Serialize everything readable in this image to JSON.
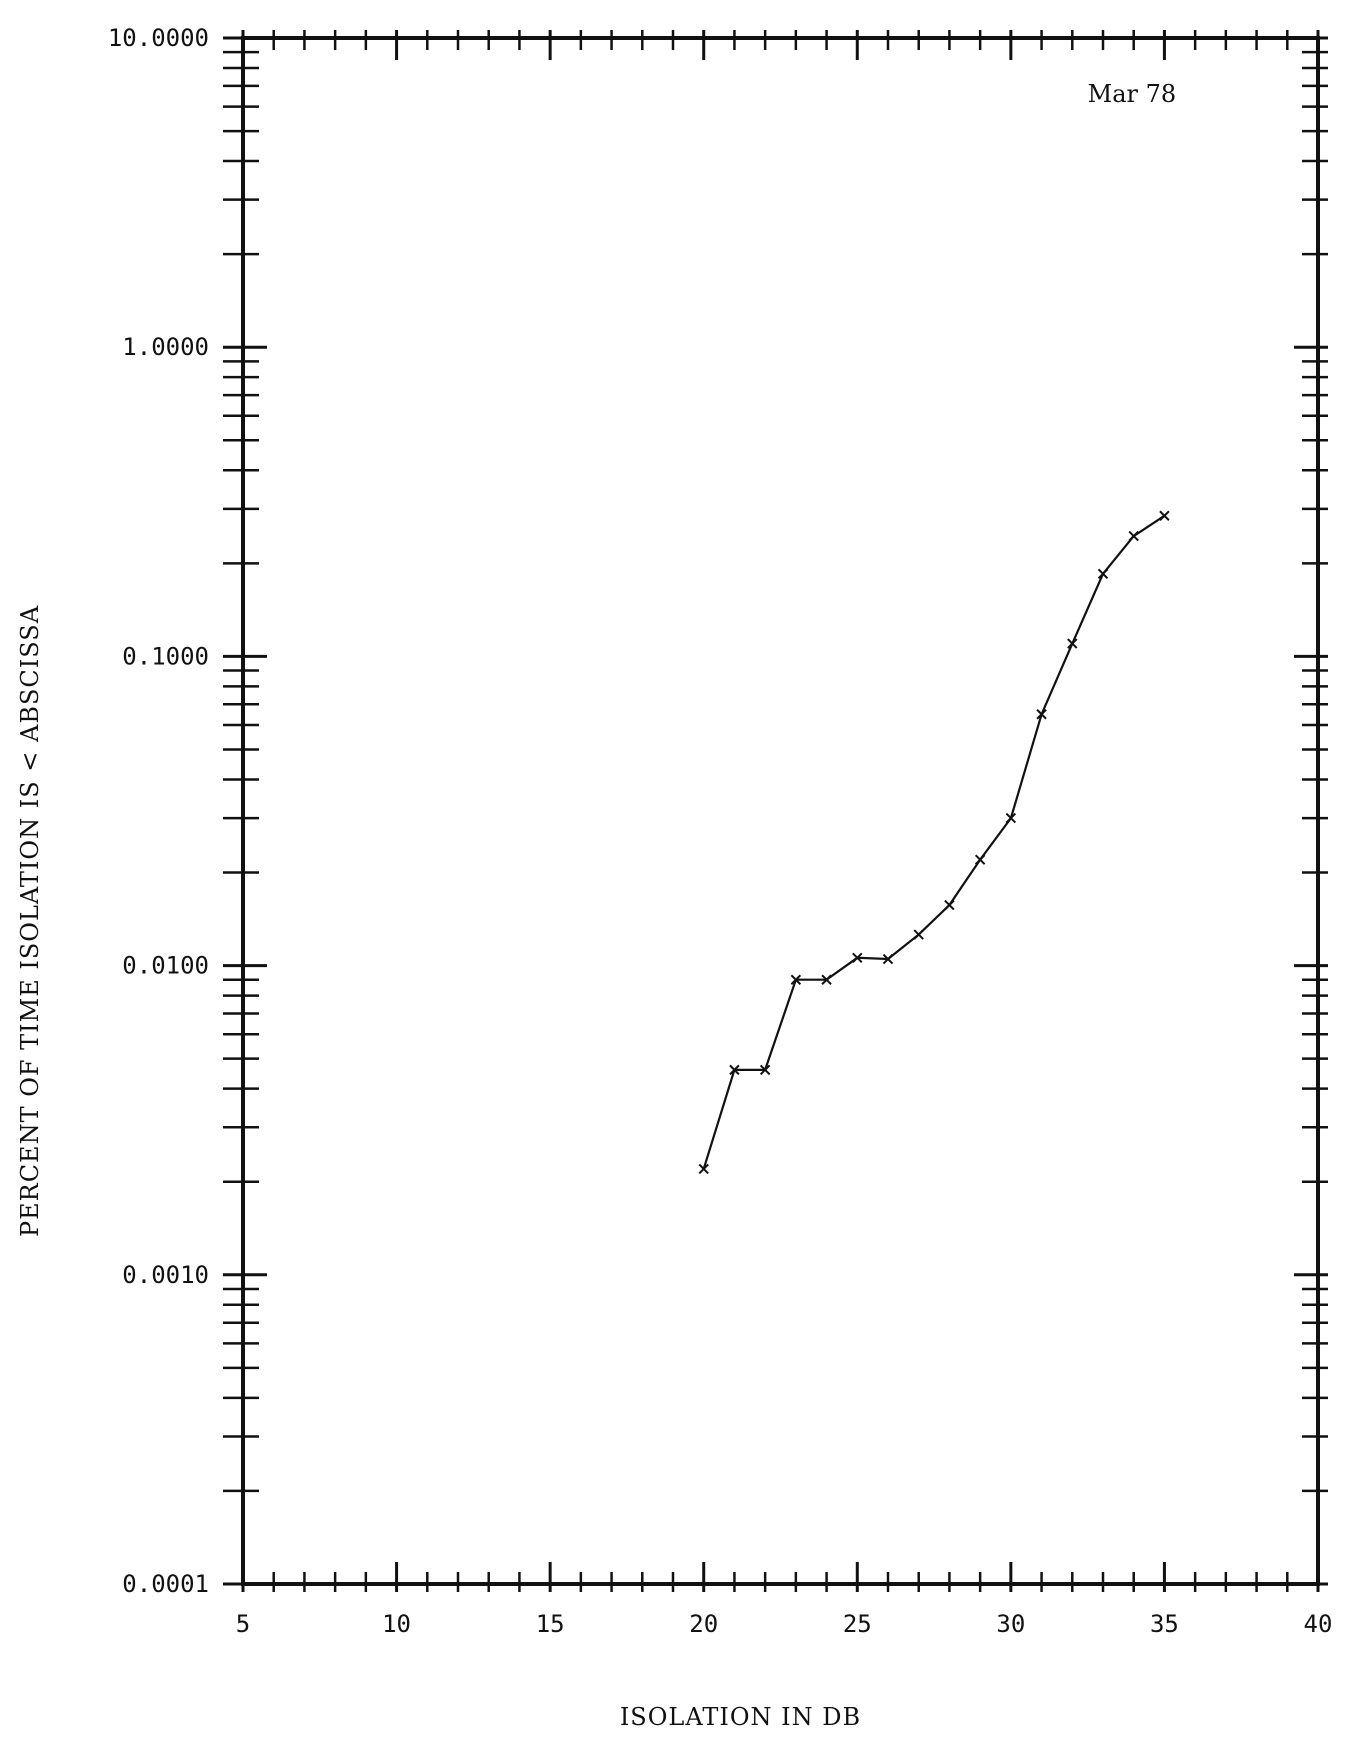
{
  "chart_data": {
    "type": "line",
    "title": "",
    "annotation": "Mar 78",
    "xlabel": "ISOLATION IN DB",
    "ylabel": "PERCENT OF TIME ISOLATION IS < ABSCISSA",
    "xlim": [
      5,
      40
    ],
    "ylim": [
      0.0001,
      10
    ],
    "yscale": "log",
    "grid": false,
    "x_ticks": [
      "5",
      "10",
      "15",
      "20",
      "25",
      "30",
      "35",
      "40"
    ],
    "y_ticks": [
      "0.0001",
      "0.0010",
      "0.0100",
      "0.1000",
      "1.0000",
      "10.0000"
    ],
    "series": [
      {
        "marker": "x",
        "color": "#111111",
        "x": [
          20,
          21,
          22,
          23,
          24,
          25,
          26,
          27,
          28,
          29,
          30,
          31,
          32,
          33,
          34,
          35
        ],
        "y": [
          0.0022,
          0.0046,
          0.0046,
          0.009,
          0.009,
          0.0106,
          0.0105,
          0.0126,
          0.0157,
          0.022,
          0.03,
          0.065,
          0.11,
          0.185,
          0.245,
          0.285
        ]
      }
    ]
  }
}
